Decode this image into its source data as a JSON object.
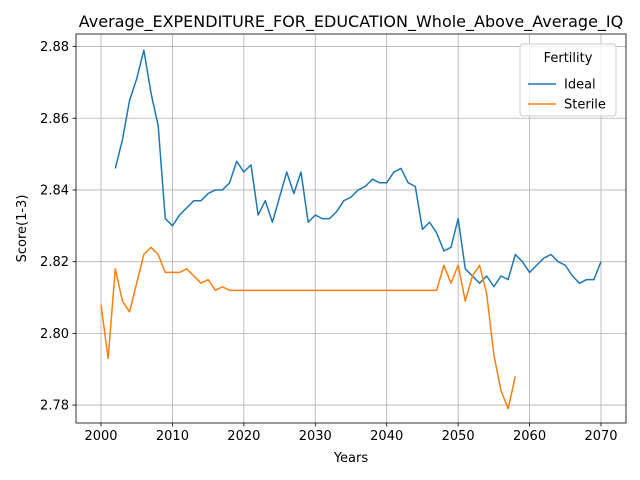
{
  "chart_data": {
    "type": "line",
    "title": "Average_EXPENDITURE_FOR_EDUCATION_Whole_Above_Average_IQ",
    "xlabel": "Years",
    "ylabel": "Score(1-3)",
    "xlim": [
      1996.5,
      2073.5
    ],
    "ylim": [
      2.775,
      2.8835
    ],
    "x_ticks": [
      2000,
      2010,
      2020,
      2030,
      2040,
      2050,
      2060,
      2070
    ],
    "y_ticks": [
      2.78,
      2.8,
      2.82,
      2.84,
      2.86,
      2.88
    ],
    "y_tick_labels": [
      "2.78",
      "2.80",
      "2.82",
      "2.84",
      "2.86",
      "2.88"
    ],
    "grid": true,
    "legend": {
      "title": "Fertility",
      "placement": "top-right"
    },
    "series": [
      {
        "name": "Ideal",
        "color": "#1f77b4",
        "x": [
          2002,
          2003,
          2004,
          2005,
          2006,
          2007,
          2008,
          2009,
          2010,
          2011,
          2012,
          2013,
          2014,
          2015,
          2016,
          2017,
          2018,
          2019,
          2020,
          2021,
          2022,
          2023,
          2024,
          2025,
          2026,
          2027,
          2028,
          2029,
          2030,
          2031,
          2032,
          2033,
          2034,
          2035,
          2036,
          2037,
          2038,
          2039,
          2040,
          2041,
          2042,
          2043,
          2044,
          2045,
          2046,
          2047,
          2048,
          2049,
          2050,
          2051,
          2052,
          2053,
          2054,
          2055,
          2056,
          2057,
          2058,
          2059,
          2060,
          2061,
          2062,
          2063,
          2064,
          2065,
          2066,
          2067,
          2068,
          2069,
          2070
        ],
        "values": [
          2.846,
          2.854,
          2.865,
          2.871,
          2.879,
          2.867,
          2.858,
          2.832,
          2.83,
          2.833,
          2.835,
          2.837,
          2.837,
          2.839,
          2.84,
          2.84,
          2.842,
          2.848,
          2.845,
          2.847,
          2.833,
          2.837,
          2.831,
          2.838,
          2.845,
          2.839,
          2.845,
          2.831,
          2.833,
          2.832,
          2.832,
          2.834,
          2.837,
          2.838,
          2.84,
          2.841,
          2.843,
          2.842,
          2.842,
          2.845,
          2.846,
          2.842,
          2.841,
          2.829,
          2.831,
          2.828,
          2.823,
          2.824,
          2.832,
          2.818,
          2.816,
          2.814,
          2.816,
          2.813,
          2.816,
          2.815,
          2.822,
          2.82,
          2.817,
          2.819,
          2.821,
          2.822,
          2.82,
          2.819,
          2.816,
          2.814,
          2.815,
          2.815,
          2.82
        ]
      },
      {
        "name": "Sterile",
        "color": "#ff7f0e",
        "x": [
          2000,
          2001,
          2002,
          2003,
          2004,
          2005,
          2006,
          2007,
          2008,
          2009,
          2010,
          2011,
          2012,
          2013,
          2014,
          2015,
          2016,
          2017,
          2018,
          2019,
          2020,
          2021,
          2022,
          2023,
          2024,
          2025,
          2026,
          2027,
          2028,
          2029,
          2030,
          2031,
          2032,
          2033,
          2034,
          2035,
          2036,
          2037,
          2038,
          2039,
          2040,
          2041,
          2042,
          2043,
          2044,
          2045,
          2046,
          2047,
          2048,
          2049,
          2050,
          2051,
          2052,
          2053,
          2054,
          2055,
          2056,
          2057,
          2058
        ],
        "values": [
          2.808,
          2.793,
          2.818,
          2.809,
          2.806,
          2.814,
          2.822,
          2.824,
          2.822,
          2.817,
          2.817,
          2.817,
          2.818,
          2.816,
          2.814,
          2.815,
          2.812,
          2.813,
          2.812,
          2.812,
          2.812,
          2.812,
          2.812,
          2.812,
          2.812,
          2.812,
          2.812,
          2.812,
          2.812,
          2.812,
          2.812,
          2.812,
          2.812,
          2.812,
          2.812,
          2.812,
          2.812,
          2.812,
          2.812,
          2.812,
          2.812,
          2.812,
          2.812,
          2.812,
          2.812,
          2.812,
          2.812,
          2.812,
          2.819,
          2.814,
          2.819,
          2.809,
          2.816,
          2.819,
          2.811,
          2.794,
          2.784,
          2.779,
          2.788
        ]
      }
    ]
  }
}
